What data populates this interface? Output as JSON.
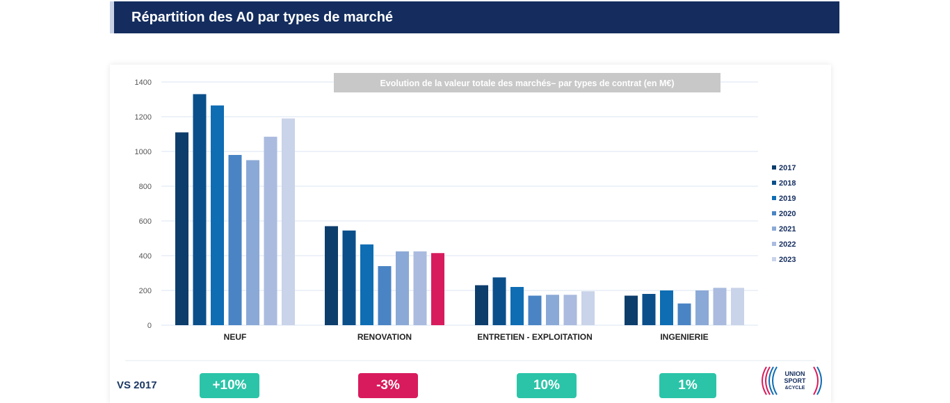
{
  "header": {
    "title": "Répartition des A0 par types de marché"
  },
  "chart_data": {
    "type": "bar",
    "title": "Evolution de la valeur totale des marchés– par types de contrat (en M€)",
    "categories": [
      "NEUF",
      "RENOVATION",
      "ENTRETIEN - EXPLOITATION",
      "INGENIERIE"
    ],
    "series": [
      {
        "name": "2017",
        "color": "#0d3d6b",
        "values": [
          1110,
          570,
          230,
          170
        ]
      },
      {
        "name": "2018",
        "color": "#0a4f8a",
        "values": [
          1330,
          545,
          275,
          180
        ]
      },
      {
        "name": "2019",
        "color": "#0e6db3",
        "values": [
          1265,
          465,
          220,
          200
        ]
      },
      {
        "name": "2020",
        "color": "#4a84c4",
        "values": [
          980,
          340,
          170,
          125
        ]
      },
      {
        "name": "2021",
        "color": "#8ba9d6",
        "values": [
          950,
          425,
          175,
          200
        ]
      },
      {
        "name": "2022",
        "color": "#aabbdf",
        "values": [
          1085,
          425,
          175,
          215
        ]
      },
      {
        "name": "2023",
        "color": "#c9d3e9",
        "values": [
          1190,
          415,
          195,
          215
        ]
      }
    ],
    "highlight": {
      "category": "RENOVATION",
      "series": "2023",
      "color": "#d81b5c"
    },
    "yticks": [
      0,
      200,
      400,
      600,
      800,
      1000,
      1200,
      1400
    ],
    "ylim": [
      0,
      1400
    ],
    "grid": true,
    "legend_position": "right"
  },
  "comparison": {
    "label": "VS 2017",
    "badges": [
      {
        "text": "+10%",
        "color": "#2bc4a8"
      },
      {
        "text": "-3%",
        "color": "#d81b5c"
      },
      {
        "text": "10%",
        "color": "#2bc4a8"
      },
      {
        "text": "1%",
        "color": "#2bc4a8"
      }
    ]
  },
  "logo": {
    "line1": "UNION",
    "line2": "SPORT",
    "line3": "&CYCLE"
  }
}
